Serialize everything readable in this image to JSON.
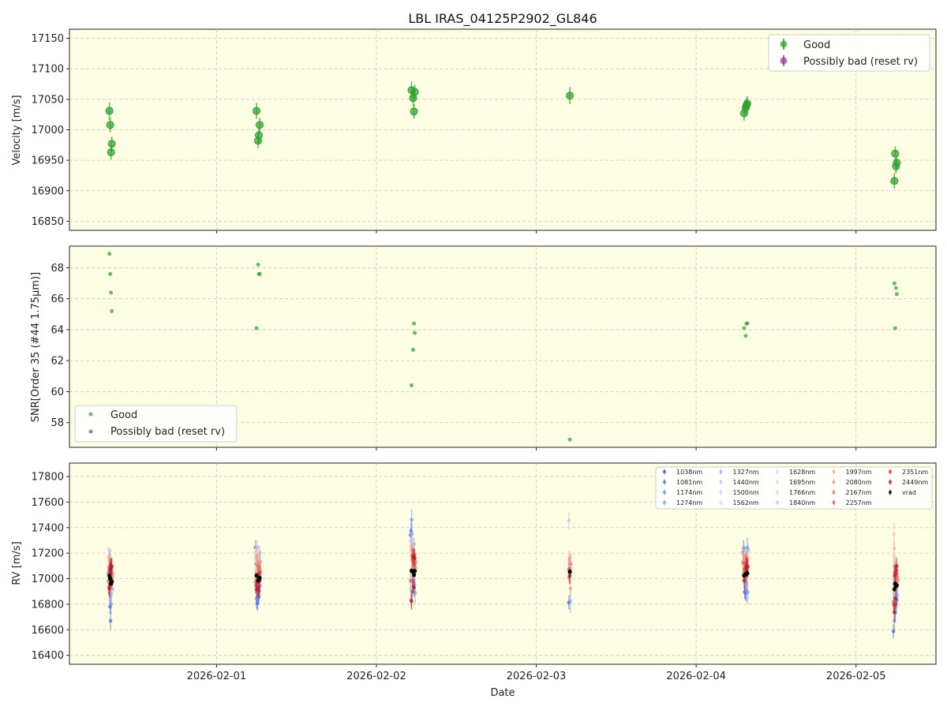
{
  "figure": {
    "title": "LBL IRAS_04125P2902_GL846",
    "xlabel": "Date",
    "x_ticks": [
      "2026-02-01",
      "2026-02-02",
      "2026-02-03",
      "2026-02-04",
      "2026-02-05"
    ]
  },
  "chart_data": [
    {
      "type": "scatter",
      "id": "velocity",
      "ylabel": "Velocity [m/s]",
      "ylim": [
        16835,
        17165
      ],
      "yticks": [
        16850,
        16900,
        16950,
        17000,
        17050,
        17100,
        17150
      ],
      "xlim_days": [
        -0.92,
        4.5
      ],
      "grid": true,
      "legend_position": "top-right",
      "series": [
        {
          "name": "Good",
          "color": "#2ca02c",
          "points": [
            {
              "x": -0.67,
              "y": 17031,
              "err": 14
            },
            {
              "x": -0.665,
              "y": 17008,
              "err": 12
            },
            {
              "x": -0.66,
              "y": 16963,
              "err": 12
            },
            {
              "x": -0.655,
              "y": 16977,
              "err": 12
            },
            {
              "x": 0.25,
              "y": 17031,
              "err": 13
            },
            {
              "x": 0.26,
              "y": 16982,
              "err": 12
            },
            {
              "x": 0.265,
              "y": 16991,
              "err": 12
            },
            {
              "x": 0.27,
              "y": 17008,
              "err": 12
            },
            {
              "x": 1.22,
              "y": 17065,
              "err": 14
            },
            {
              "x": 1.23,
              "y": 17052,
              "err": 13
            },
            {
              "x": 1.235,
              "y": 17030,
              "err": 12
            },
            {
              "x": 1.24,
              "y": 17062,
              "err": 12
            },
            {
              "x": 2.21,
              "y": 17056,
              "err": 14
            },
            {
              "x": 3.3,
              "y": 17027,
              "err": 12
            },
            {
              "x": 3.31,
              "y": 17036,
              "err": 12
            },
            {
              "x": 3.315,
              "y": 17040,
              "err": 12
            },
            {
              "x": 3.32,
              "y": 17043,
              "err": 12
            },
            {
              "x": 4.24,
              "y": 16916,
              "err": 13
            },
            {
              "x": 4.245,
              "y": 16961,
              "err": 12
            },
            {
              "x": 4.25,
              "y": 16940,
              "err": 12
            },
            {
              "x": 4.255,
              "y": 16946,
              "err": 12
            }
          ]
        },
        {
          "name": "Possibly bad (reset rv)",
          "color": "#9b30a8",
          "points": []
        }
      ]
    },
    {
      "type": "scatter",
      "id": "snr",
      "ylabel": "SNR[Order 35 (#44 1.75μm)]",
      "ylim": [
        56.4,
        69.4
      ],
      "yticks": [
        58,
        60,
        62,
        64,
        66,
        68
      ],
      "grid": true,
      "legend_position": "bottom-left",
      "series": [
        {
          "name": "Good",
          "color": "#2ca02c",
          "points": [
            {
              "x": -0.67,
              "y": 68.9
            },
            {
              "x": -0.665,
              "y": 67.6
            },
            {
              "x": -0.66,
              "y": 66.4
            },
            {
              "x": -0.655,
              "y": 65.2
            },
            {
              "x": 0.25,
              "y": 64.1
            },
            {
              "x": 0.26,
              "y": 68.2
            },
            {
              "x": 0.265,
              "y": 67.6
            },
            {
              "x": 0.27,
              "y": 67.6
            },
            {
              "x": 1.22,
              "y": 60.4
            },
            {
              "x": 1.23,
              "y": 62.7
            },
            {
              "x": 1.235,
              "y": 64.4
            },
            {
              "x": 1.24,
              "y": 63.8
            },
            {
              "x": 2.21,
              "y": 56.9
            },
            {
              "x": 3.3,
              "y": 64.1
            },
            {
              "x": 3.31,
              "y": 63.6
            },
            {
              "x": 3.315,
              "y": 64.4
            },
            {
              "x": 3.32,
              "y": 64.4
            },
            {
              "x": 4.24,
              "y": 67.0
            },
            {
              "x": 4.245,
              "y": 64.1
            },
            {
              "x": 4.25,
              "y": 66.7
            },
            {
              "x": 4.255,
              "y": 66.3
            }
          ]
        },
        {
          "name": "Possibly bad (reset rv)",
          "color": "#9b30a8",
          "points": []
        }
      ]
    },
    {
      "type": "scatter",
      "id": "rv",
      "ylabel": "RV [m/s]",
      "ylim": [
        16330,
        17905
      ],
      "yticks": [
        16400,
        16600,
        16800,
        17000,
        17200,
        17400,
        17600,
        17800
      ],
      "grid": true,
      "legend_position": "top-right",
      "vrad_points": [
        {
          "x": -0.67,
          "y": 17023
        },
        {
          "x": -0.665,
          "y": 17002
        },
        {
          "x": -0.66,
          "y": 16960
        },
        {
          "x": -0.655,
          "y": 16977
        },
        {
          "x": 0.25,
          "y": 17025
        },
        {
          "x": 0.26,
          "y": 16985
        },
        {
          "x": 0.265,
          "y": 16995
        },
        {
          "x": 0.27,
          "y": 17005
        },
        {
          "x": 1.22,
          "y": 17062
        },
        {
          "x": 1.23,
          "y": 17050
        },
        {
          "x": 1.235,
          "y": 17030
        },
        {
          "x": 1.24,
          "y": 17060
        },
        {
          "x": 2.21,
          "y": 17054
        },
        {
          "x": 3.3,
          "y": 17025
        },
        {
          "x": 3.31,
          "y": 17034
        },
        {
          "x": 3.315,
          "y": 17038
        },
        {
          "x": 3.32,
          "y": 17042
        },
        {
          "x": 4.24,
          "y": 16918
        },
        {
          "x": 4.245,
          "y": 16960
        },
        {
          "x": 4.25,
          "y": 16942
        },
        {
          "x": 4.255,
          "y": 16948
        }
      ],
      "band_series": [
        {
          "name": "1038nm",
          "color": "#3b5bdb",
          "offsets": [
            20,
            60,
            -180,
            -40,
            220,
            -180,
            10,
            -150,
            280,
            -150,
            60,
            20,
            -240,
            180,
            -140,
            40,
            10,
            -330,
            -170,
            -210,
            -100
          ]
        },
        {
          "name": "1081nm",
          "color": "#4c6fe0",
          "offsets": [
            150,
            -120,
            -290,
            60,
            90,
            -160,
            30,
            40,
            310,
            -60,
            -60,
            10,
            20,
            210,
            -130,
            -150,
            -20,
            -120,
            30,
            -90,
            -70
          ]
        },
        {
          "name": "1174nm",
          "color": "#6a8ee8",
          "offsets": [
            -100,
            120,
            -160,
            60,
            -180,
            -110,
            20,
            -60,
            400,
            -40,
            80,
            30,
            20,
            160,
            -60,
            -130,
            200,
            -250,
            -220,
            -100,
            -120
          ]
        },
        {
          "name": "1274nm",
          "color": "#86a6ee",
          "offsets": [
            -80,
            140,
            -40,
            40,
            40,
            120,
            60,
            -60,
            290,
            180,
            -80,
            -170,
            -230,
            90,
            -90,
            40,
            -150,
            -100,
            10,
            -60,
            -80
          ]
        },
        {
          "name": "1327nm",
          "color": "#9db8f2",
          "offsets": [
            110,
            -30,
            30,
            -60,
            220,
            110,
            210,
            130,
            120,
            220,
            90,
            30,
            20,
            180,
            70,
            120,
            180,
            90,
            70,
            80,
            30
          ]
        },
        {
          "name": "1440nm",
          "color": "#b5c9f4",
          "offsets": [
            70,
            90,
            -50,
            -40,
            140,
            60,
            180,
            20,
            230,
            140,
            40,
            80,
            400,
            110,
            40,
            80,
            120,
            40,
            40,
            70,
            20
          ]
        },
        {
          "name": "1500nm",
          "color": "#c6d5f5",
          "offsets": [
            40,
            50,
            80,
            10,
            160,
            100,
            60,
            -10,
            150,
            60,
            90,
            40,
            50,
            80,
            70,
            50,
            100,
            30,
            70,
            40,
            50
          ]
        },
        {
          "name": "1562nm",
          "color": "#d6dff4",
          "offsets": [
            60,
            20,
            90,
            20,
            110,
            140,
            50,
            20,
            120,
            110,
            60,
            30,
            40,
            90,
            60,
            30,
            80,
            60,
            40,
            30,
            60
          ]
        },
        {
          "name": "1628nm",
          "color": "#dedfe0",
          "offsets": [
            90,
            60,
            40,
            50,
            130,
            100,
            80,
            40,
            170,
            90,
            70,
            60,
            30,
            140,
            80,
            50,
            70,
            150,
            80,
            60,
            40
          ]
        },
        {
          "name": "1695nm",
          "color": "#e6dcd2",
          "offsets": [
            120,
            40,
            60,
            30,
            150,
            120,
            70,
            60,
            140,
            100,
            80,
            50,
            60,
            120,
            90,
            60,
            90,
            200,
            110,
            90,
            70
          ]
        },
        {
          "name": "1766nm",
          "color": "#efd3c0",
          "offsets": [
            150,
            80,
            20,
            60,
            180,
            80,
            60,
            80,
            180,
            130,
            60,
            90,
            90,
            170,
            70,
            100,
            80,
            260,
            130,
            120,
            90
          ]
        },
        {
          "name": "1840nm",
          "color": "#f2c6ae",
          "offsets": [
            80,
            50,
            60,
            40,
            130,
            90,
            100,
            50,
            120,
            80,
            40,
            60,
            70,
            90,
            50,
            70,
            60,
            430,
            150,
            110,
            80
          ]
        },
        {
          "name": "1997nm",
          "color": "#f3b196",
          "offsets": [
            120,
            100,
            30,
            80,
            160,
            110,
            90,
            70,
            200,
            150,
            90,
            80,
            110,
            160,
            110,
            90,
            110,
            320,
            140,
            100,
            100
          ]
        },
        {
          "name": "2080nm",
          "color": "#ef9a80",
          "offsets": [
            -60,
            80,
            20,
            40,
            100,
            60,
            140,
            40,
            160,
            100,
            60,
            20,
            -130,
            100,
            70,
            40,
            60,
            180,
            90,
            60,
            50
          ]
        },
        {
          "name": "2167nm",
          "color": "#e9826b",
          "offsets": [
            30,
            -20,
            40,
            60,
            80,
            40,
            30,
            50,
            120,
            40,
            30,
            70,
            60,
            60,
            20,
            40,
            50,
            130,
            80,
            70,
            40
          ]
        },
        {
          "name": "2257nm",
          "color": "#de6655",
          "offsets": [
            -40,
            80,
            -20,
            100,
            -50,
            -40,
            20,
            30,
            -80,
            100,
            20,
            50,
            20,
            100,
            -30,
            60,
            80,
            -100,
            60,
            40,
            60
          ]
        },
        {
          "name": "2351nm",
          "color": "#cf3d45",
          "offsets": [
            -90,
            70,
            140,
            110,
            -80,
            -10,
            -60,
            40,
            -230,
            130,
            -90,
            120,
            -40,
            0,
            40,
            80,
            20,
            -120,
            90,
            -140,
            120
          ]
        },
        {
          "name": "2449nm",
          "color": "#b7162f",
          "offsets": [
            -100,
            60,
            130,
            120,
            -110,
            -60,
            -90,
            -20,
            -240,
            120,
            -100,
            100,
            -30,
            -40,
            10,
            60,
            50,
            -180,
            70,
            -100,
            150
          ]
        }
      ],
      "vrad_legend_label": "vrad"
    }
  ]
}
